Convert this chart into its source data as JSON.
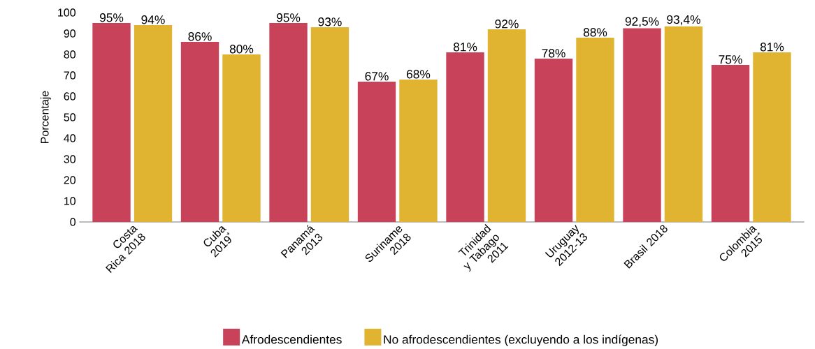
{
  "chart_data": {
    "type": "bar",
    "ylabel": "Porcentaje",
    "categories": [
      "Costa Rica 2018",
      "Cuba 2019$^{*}$",
      "Panamá 2013",
      "Suriname 2018",
      "Trinidad y Tabago 2011",
      "Uruguay 2012-13",
      "Brasil 2018",
      "Colombia 2015$^{*}$"
    ],
    "series": [
      {
        "name": "Afrodescendientes",
        "color": "#c8435a",
        "values": [
          95,
          86,
          95,
          67,
          81,
          78,
          92.5,
          75
        ],
        "value_labels": [
          "95%",
          "86%",
          "95%",
          "67%",
          "81%",
          "78%",
          "92,5%",
          "75%"
        ]
      },
      {
        "name": "No afrodescendientes (excluyendo a los indígenas)",
        "color": "#e0b431",
        "values": [
          94,
          80,
          93,
          68,
          92,
          88,
          93.4,
          81
        ],
        "value_labels": [
          "94%",
          "80%",
          "93%",
          "68%",
          "92%",
          "88%",
          "93,4%",
          "81%"
        ]
      }
    ],
    "ylim": [
      0,
      100
    ],
    "yticks": [
      0,
      10,
      20,
      30,
      40,
      50,
      60,
      70,
      80,
      90,
      100
    ],
    "grid": false,
    "legend": "bottom"
  }
}
